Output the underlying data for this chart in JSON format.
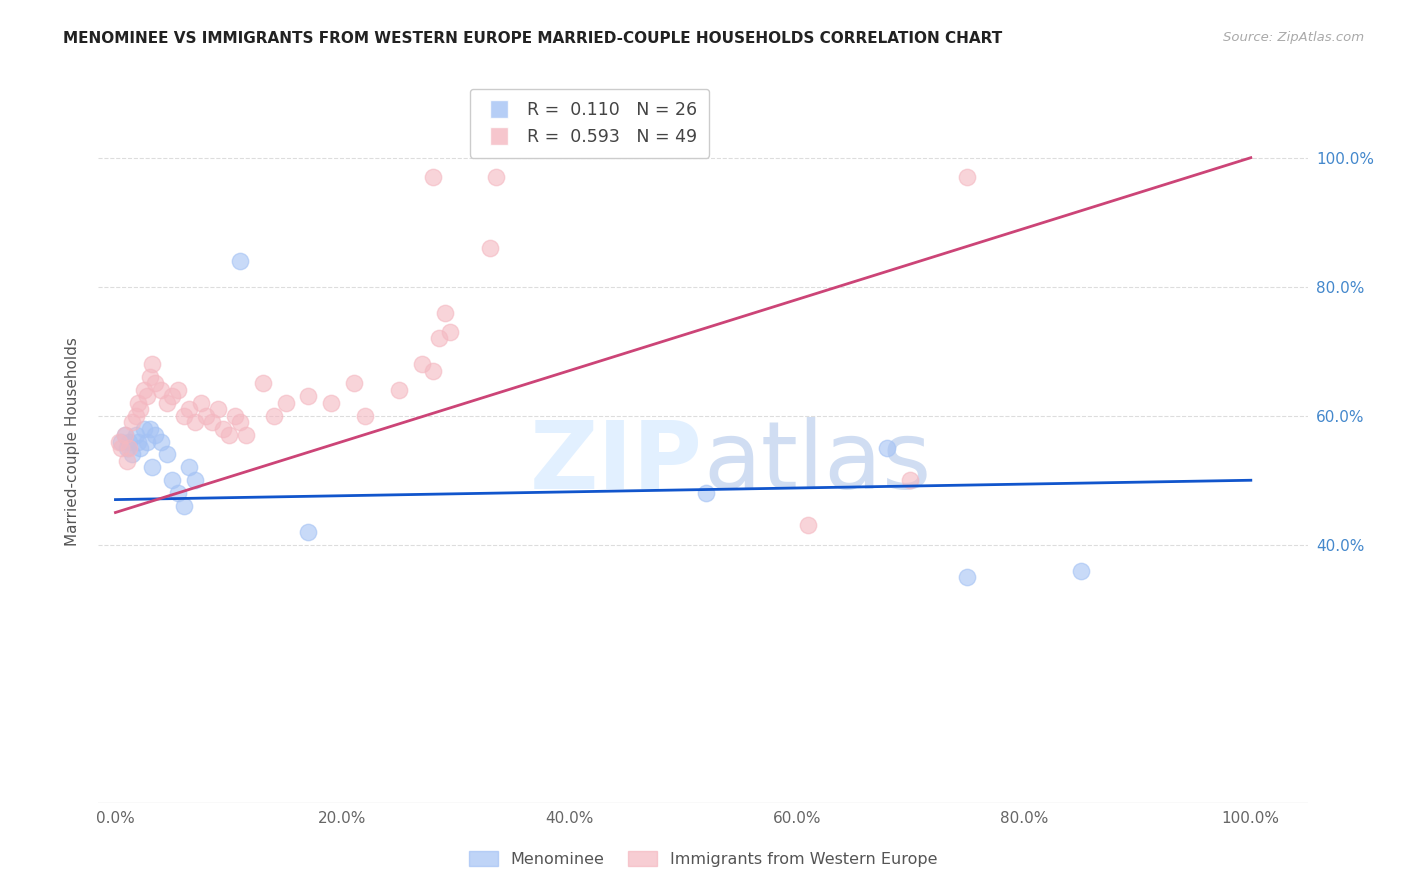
{
  "title": "MENOMINEE VS IMMIGRANTS FROM WESTERN EUROPE MARRIED-COUPLE HOUSEHOLDS CORRELATION CHART",
  "source": "Source: ZipAtlas.com",
  "ylabel": "Married-couple Households",
  "legend_blue_label": "Menominee",
  "legend_pink_label": "Immigrants from Western Europe",
  "R_blue": 0.11,
  "N_blue": 26,
  "R_pink": 0.593,
  "N_pink": 49,
  "blue_color": "#a4c2f4",
  "pink_color": "#f4b8c1",
  "blue_line_color": "#1155cc",
  "pink_line_color": "#cc4477",
  "watermark_color": "#ddeeff",
  "blue_points": [
    [
      0.5,
      56.0
    ],
    [
      0.8,
      57.0
    ],
    [
      1.0,
      55.0
    ],
    [
      1.2,
      56.0
    ],
    [
      1.5,
      54.0
    ],
    [
      1.8,
      57.0
    ],
    [
      2.0,
      56.0
    ],
    [
      2.2,
      55.0
    ],
    [
      2.5,
      58.0
    ],
    [
      2.8,
      56.0
    ],
    [
      3.0,
      58.0
    ],
    [
      3.2,
      52.0
    ],
    [
      3.5,
      57.0
    ],
    [
      4.0,
      56.0
    ],
    [
      4.5,
      54.0
    ],
    [
      5.0,
      50.0
    ],
    [
      5.5,
      48.0
    ],
    [
      6.0,
      46.0
    ],
    [
      6.5,
      52.0
    ],
    [
      7.0,
      50.0
    ],
    [
      11.0,
      84.0
    ],
    [
      17.0,
      42.0
    ],
    [
      52.0,
      48.0
    ],
    [
      68.0,
      55.0
    ],
    [
      75.0,
      35.0
    ],
    [
      85.0,
      36.0
    ]
  ],
  "pink_points": [
    [
      0.3,
      56.0
    ],
    [
      0.5,
      55.0
    ],
    [
      0.8,
      57.0
    ],
    [
      1.0,
      53.0
    ],
    [
      1.2,
      55.0
    ],
    [
      1.5,
      59.0
    ],
    [
      1.8,
      60.0
    ],
    [
      2.0,
      62.0
    ],
    [
      2.2,
      61.0
    ],
    [
      2.5,
      64.0
    ],
    [
      2.8,
      63.0
    ],
    [
      3.0,
      66.0
    ],
    [
      3.2,
      68.0
    ],
    [
      3.5,
      65.0
    ],
    [
      4.0,
      64.0
    ],
    [
      4.5,
      62.0
    ],
    [
      5.0,
      63.0
    ],
    [
      5.5,
      64.0
    ],
    [
      6.0,
      60.0
    ],
    [
      6.5,
      61.0
    ],
    [
      7.0,
      59.0
    ],
    [
      7.5,
      62.0
    ],
    [
      8.0,
      60.0
    ],
    [
      8.5,
      59.0
    ],
    [
      9.0,
      61.0
    ],
    [
      9.5,
      58.0
    ],
    [
      10.0,
      57.0
    ],
    [
      10.5,
      60.0
    ],
    [
      11.0,
      59.0
    ],
    [
      11.5,
      57.0
    ],
    [
      13.0,
      65.0
    ],
    [
      14.0,
      60.0
    ],
    [
      15.0,
      62.0
    ],
    [
      17.0,
      63.0
    ],
    [
      19.0,
      62.0
    ],
    [
      21.0,
      65.0
    ],
    [
      22.0,
      60.0
    ],
    [
      25.0,
      64.0
    ],
    [
      27.0,
      68.0
    ],
    [
      28.0,
      67.0
    ],
    [
      28.5,
      72.0
    ],
    [
      29.0,
      76.0
    ],
    [
      29.5,
      73.0
    ],
    [
      33.0,
      86.0
    ],
    [
      28.0,
      97.0
    ],
    [
      33.5,
      97.0
    ],
    [
      61.0,
      43.0
    ],
    [
      70.0,
      50.0
    ],
    [
      75.0,
      97.0
    ]
  ],
  "xlim": [
    -1.5,
    105.0
  ],
  "ylim": [
    0.0,
    112.0
  ],
  "xticks": [
    0,
    20,
    40,
    60,
    80,
    100
  ],
  "yticks": [
    40,
    60,
    80,
    100
  ],
  "xticklabels": [
    "0.0%",
    "20.0%",
    "40.0%",
    "60.0%",
    "80.0%",
    "100.0%"
  ],
  "yticklabels_right": [
    "40.0%",
    "60.0%",
    "80.0%",
    "100.0%"
  ],
  "background_color": "#ffffff",
  "grid_color": "#dddddd"
}
